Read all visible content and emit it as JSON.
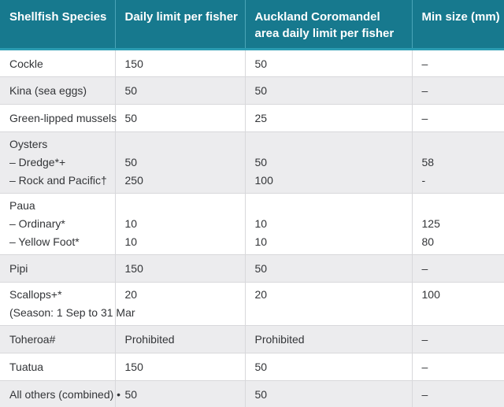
{
  "table": {
    "headers": [
      "Shellfish Species",
      "Daily limit per fisher",
      "Auckland Coromandel area daily limit per fisher",
      "Min size (mm)"
    ],
    "rows": [
      {
        "species": "Cockle",
        "daily": "150",
        "auckland": "50",
        "min": "–"
      },
      {
        "species": "Kina (sea eggs)",
        "daily": "50",
        "auckland": "50",
        "min": "–"
      },
      {
        "species": "Green-lipped mussels",
        "daily": "50",
        "auckland": "25",
        "min": "–"
      },
      {
        "species": "Oysters\n– Dredge*+\n– Rock and Pacific†",
        "daily": "\n50\n250",
        "auckland": "\n50\n100",
        "min": "\n58\n-"
      },
      {
        "species": "Paua\n– Ordinary*\n– Yellow Foot*",
        "daily": "\n10\n10",
        "auckland": "\n10\n10",
        "min": "\n125\n80"
      },
      {
        "species": "Pipi",
        "daily": "150",
        "auckland": "50",
        "min": "–"
      },
      {
        "species": "Scallops+*\n(Season: 1 Sep to 31 Mar",
        "daily": "20",
        "auckland": "20",
        "min": "100"
      },
      {
        "species": "Toheroa#",
        "daily": "Prohibited",
        "auckland": "Prohibited",
        "min": "–"
      },
      {
        "species": "Tuatua",
        "daily": "150",
        "auckland": "50",
        "min": "–"
      },
      {
        "species": "All others (combined) •",
        "daily": "50",
        "auckland": "50",
        "min": "–"
      }
    ]
  },
  "colors": {
    "header_bg": "#17798e",
    "header_divider": "#4aa5b8",
    "header_underline": "#2b9cb2",
    "row_alt_bg": "#ececee",
    "grid_border": "#d8d8db",
    "text": "#333538"
  }
}
